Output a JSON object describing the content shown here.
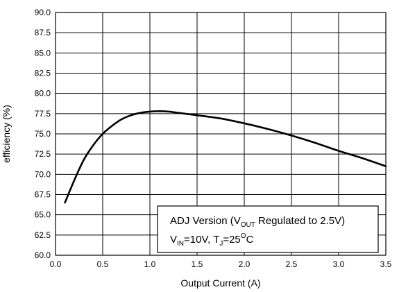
{
  "chart_data": {
    "type": "line",
    "title": "",
    "xlabel": "Output Current (A)",
    "ylabel": "efficiency (%)",
    "xlim": [
      0.0,
      3.5
    ],
    "ylim": [
      60.0,
      90.0
    ],
    "x_ticks": [
      "0.0",
      "0.5",
      "1.0",
      "1.5",
      "2.0",
      "2.5",
      "3.0",
      "3.5"
    ],
    "y_ticks": [
      "60.0",
      "62.5",
      "65.0",
      "67.5",
      "70.0",
      "72.5",
      "75.0",
      "77.5",
      "80.0",
      "82.5",
      "85.0",
      "87.5",
      "90.0"
    ],
    "grid": true,
    "series": [
      {
        "x": [
          0.1,
          0.2,
          0.3,
          0.4,
          0.5,
          0.6,
          0.7,
          0.8,
          0.9,
          1.0,
          1.1,
          1.2,
          1.3,
          1.4,
          1.5,
          1.75,
          2.0,
          2.25,
          2.5,
          2.75,
          3.0,
          3.25,
          3.5
        ],
        "y": [
          66.5,
          69.3,
          71.8,
          73.6,
          75.0,
          76.0,
          76.8,
          77.3,
          77.6,
          77.75,
          77.8,
          77.75,
          77.6,
          77.45,
          77.3,
          76.9,
          76.3,
          75.6,
          74.8,
          73.9,
          72.9,
          72.0,
          71.0
        ]
      }
    ],
    "annotation": {
      "line1_prefix": "ADJ Version (V",
      "line1_sub": "OUT",
      "line1_suffix": " Regulated to 2.5V)",
      "line2_v": "V",
      "line2_v_sub": "IN",
      "line2_mid": "=10V, T",
      "line2_t_sub": "J",
      "line2_temp": "=25",
      "line2_deg": "O",
      "line2_unit": "C"
    }
  }
}
